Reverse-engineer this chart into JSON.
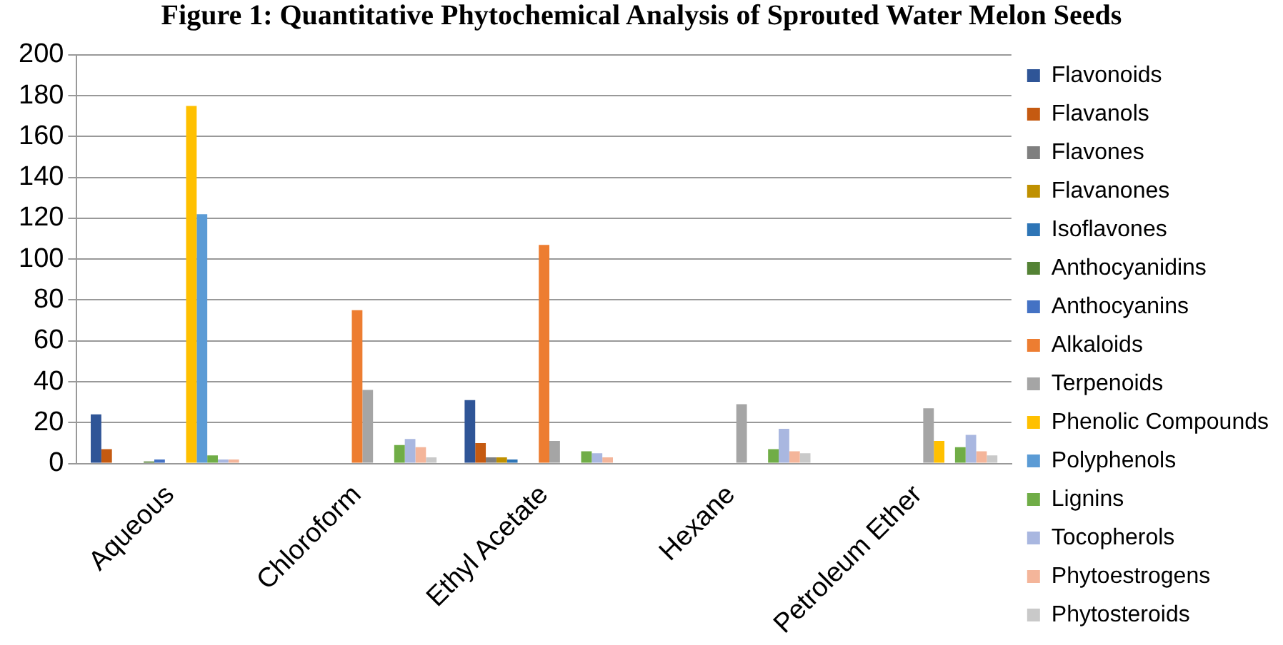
{
  "chart_data": {
    "type": "bar",
    "title": "Figure 1: Quantitative Phytochemical Analysis of Sprouted Water Melon Seeds",
    "categories": [
      "Aqueous",
      "Chloroform",
      "Ethyl Acetate",
      "Hexane",
      "Petroleum Ether"
    ],
    "series": [
      {
        "name": "Flavonoids",
        "color": "#2f5597",
        "values": [
          24,
          0,
          31,
          0,
          0
        ]
      },
      {
        "name": "Flavanols",
        "color": "#c55a11",
        "values": [
          7,
          0,
          10,
          0,
          0
        ]
      },
      {
        "name": "Flavones",
        "color": "#7f7f7f",
        "values": [
          0,
          0,
          3,
          0,
          0
        ]
      },
      {
        "name": "Flavanones",
        "color": "#bf9000",
        "values": [
          0,
          0,
          3,
          0,
          0
        ]
      },
      {
        "name": "Isoflavones",
        "color": "#2e75b6",
        "values": [
          0,
          0,
          2,
          0,
          0
        ]
      },
      {
        "name": "Anthocyanidins",
        "color": "#548235",
        "values": [
          1,
          0,
          0,
          0,
          0
        ]
      },
      {
        "name": "Anthocyanins",
        "color": "#4472c4",
        "values": [
          2,
          0,
          0,
          0,
          0
        ]
      },
      {
        "name": "Alkaloids",
        "color": "#ed7d31",
        "values": [
          0,
          75,
          107,
          0,
          0
        ]
      },
      {
        "name": "Terpenoids",
        "color": "#a5a5a5",
        "values": [
          0,
          36,
          11,
          29,
          27
        ]
      },
      {
        "name": "Phenolic Compounds",
        "color": "#ffc000",
        "values": [
          175,
          0,
          0,
          0,
          11
        ]
      },
      {
        "name": "Polyphenols",
        "color": "#5b9bd5",
        "values": [
          122,
          0,
          0,
          0,
          0
        ]
      },
      {
        "name": "Lignins",
        "color": "#70ad47",
        "values": [
          4,
          9,
          6,
          7,
          8
        ]
      },
      {
        "name": "Tocopherols",
        "color": "#a9b7e0",
        "values": [
          2,
          12,
          5,
          17,
          14
        ]
      },
      {
        "name": "Phytoestrogens",
        "color": "#f4b59a",
        "values": [
          2,
          8,
          3,
          6,
          6
        ]
      },
      {
        "name": "Phytosteroids",
        "color": "#c9c9c9",
        "values": [
          null,
          3,
          null,
          5,
          4
        ]
      }
    ],
    "ylim": [
      0,
      200
    ],
    "yticks": [
      0,
      20,
      40,
      60,
      80,
      100,
      120,
      140,
      160,
      180,
      200
    ],
    "grid": "y",
    "legend": "right"
  }
}
